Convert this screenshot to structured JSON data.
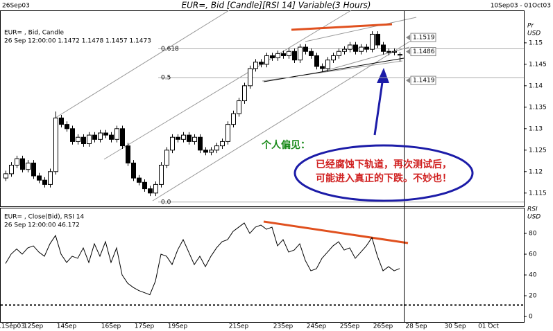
{
  "chart_data": [
    {
      "type": "candlestick",
      "title": "EUR=, Bid [Candle][RSI 14] Variable(3 Hours)",
      "date_left": "26Sep03",
      "date_range": "10Sep03 - 01Oct03",
      "info_lines": [
        "EUR= , Bid, Candle",
        "26 Sep 12:00:00 1.1472 1.1478 1.1457 1.1473"
      ],
      "y_axis_label": [
        "Pr",
        "USD"
      ],
      "up_color": "#ffffff",
      "down_color": "#000000",
      "open": [
        1.1185,
        1.1195,
        1.1215,
        1.123,
        1.1205,
        1.122,
        1.119,
        1.118,
        1.117,
        1.12,
        1.1325,
        1.131,
        1.13,
        1.127,
        1.128,
        1.1265,
        1.1285,
        1.1275,
        1.129,
        1.1285,
        1.1275,
        1.13,
        1.126,
        1.122,
        1.1185,
        1.1175,
        1.116,
        1.115,
        1.117,
        1.1215,
        1.125,
        1.128,
        1.1275,
        1.1285,
        1.127,
        1.128,
        1.125,
        1.1245,
        1.125,
        1.126,
        1.127,
        1.131,
        1.1335,
        1.1365,
        1.14,
        1.144,
        1.1455,
        1.145,
        1.147,
        1.1465,
        1.1475,
        1.147,
        1.148,
        1.146,
        1.149,
        1.148,
        1.147,
        1.1445,
        1.144,
        1.146,
        1.147,
        1.148,
        1.1485,
        1.1495,
        1.148,
        1.149,
        1.1485,
        1.152,
        1.1495,
        1.148,
        1.1478,
        1.1472
      ],
      "high": [
        1.1202,
        1.1222,
        1.1237,
        1.1237,
        1.1227,
        1.1227,
        1.1197,
        1.1187,
        1.1207,
        1.134,
        1.1332,
        1.1317,
        1.1307,
        1.1287,
        1.1287,
        1.1292,
        1.1292,
        1.1297,
        1.1297,
        1.1292,
        1.1307,
        1.1307,
        1.1267,
        1.1227,
        1.1192,
        1.1182,
        1.1167,
        1.1177,
        1.1222,
        1.1257,
        1.1287,
        1.1287,
        1.1292,
        1.1292,
        1.1287,
        1.1287,
        1.1257,
        1.1257,
        1.1267,
        1.1277,
        1.1317,
        1.1342,
        1.1372,
        1.1407,
        1.1447,
        1.1462,
        1.1462,
        1.1477,
        1.1477,
        1.1482,
        1.1482,
        1.1487,
        1.1487,
        1.1497,
        1.1497,
        1.1487,
        1.1477,
        1.1452,
        1.1467,
        1.1477,
        1.1487,
        1.1492,
        1.1502,
        1.1502,
        1.1497,
        1.1497,
        1.1527,
        1.1527,
        1.1502,
        1.1487,
        1.1487,
        1.1478
      ],
      "low": [
        1.1178,
        1.1188,
        1.1208,
        1.1198,
        1.1198,
        1.1183,
        1.1173,
        1.1163,
        1.1163,
        1.1193,
        1.1303,
        1.1293,
        1.1263,
        1.1263,
        1.1258,
        1.1258,
        1.1268,
        1.1268,
        1.1278,
        1.1268,
        1.1268,
        1.1253,
        1.1213,
        1.1178,
        1.1168,
        1.1153,
        1.1143,
        1.1143,
        1.1163,
        1.1208,
        1.1243,
        1.1268,
        1.1268,
        1.1263,
        1.1263,
        1.1243,
        1.1238,
        1.1238,
        1.1243,
        1.1253,
        1.1263,
        1.1303,
        1.1328,
        1.1358,
        1.1393,
        1.1433,
        1.1443,
        1.1443,
        1.1458,
        1.1458,
        1.1463,
        1.1463,
        1.1453,
        1.1453,
        1.1473,
        1.1463,
        1.1438,
        1.1433,
        1.1433,
        1.1453,
        1.1463,
        1.1473,
        1.1478,
        1.1473,
        1.1473,
        1.1478,
        1.1478,
        1.1488,
        1.1473,
        1.1471,
        1.1471,
        1.1457
      ],
      "close": [
        1.1195,
        1.1215,
        1.123,
        1.1205,
        1.122,
        1.119,
        1.118,
        1.117,
        1.12,
        1.1325,
        1.131,
        1.13,
        1.127,
        1.128,
        1.1265,
        1.1285,
        1.1275,
        1.129,
        1.1285,
        1.1275,
        1.13,
        1.126,
        1.122,
        1.1185,
        1.1175,
        1.116,
        1.115,
        1.117,
        1.1215,
        1.125,
        1.128,
        1.1275,
        1.1285,
        1.127,
        1.128,
        1.125,
        1.1245,
        1.125,
        1.126,
        1.127,
        1.131,
        1.1335,
        1.1365,
        1.14,
        1.144,
        1.1455,
        1.145,
        1.147,
        1.1465,
        1.1475,
        1.147,
        1.148,
        1.146,
        1.149,
        1.148,
        1.147,
        1.1445,
        1.144,
        1.146,
        1.147,
        1.148,
        1.1485,
        1.1495,
        1.148,
        1.149,
        1.1485,
        1.152,
        1.1495,
        1.148,
        1.1478,
        1.148,
        1.1473
      ],
      "ylim": [
        1.1119,
        1.1574
      ],
      "yticks": [
        1.115,
        1.12,
        1.125,
        1.13,
        1.135,
        1.14,
        1.145,
        1.15
      ],
      "fib_levels": [
        {
          "name": "0.618",
          "price": 1.1486
        },
        {
          "name": "0.5",
          "price": 1.1419
        },
        {
          "name": "0.0",
          "price": 1.1129
        }
      ],
      "price_markers": [
        1.1519,
        1.1486,
        1.1419
      ],
      "annotations": [
        "个人偏见：",
        "已经腐蚀下轨道，再次测试后，",
        "可能进入真正的下跌。不妙也！"
      ]
    },
    {
      "type": "line",
      "info_lines": [
        "EUR= , Close(Bid), RSI 14",
        "26 Sep 12:00:00 46.172"
      ],
      "y_axis_label": [
        "RSI",
        "USD"
      ],
      "color": "#000000",
      "categories": [
        null,
        "11Sep03",
        null,
        null,
        null,
        "12Sep",
        null,
        null,
        null,
        null,
        null,
        "14Sep",
        null,
        null,
        null,
        null,
        null,
        null,
        null,
        "16Sep",
        null,
        null,
        null,
        null,
        null,
        "17Sep",
        null,
        null,
        null,
        null,
        null,
        "19Sep",
        null,
        null,
        null,
        null,
        null,
        null,
        null,
        null,
        null,
        null,
        "21Sep",
        null,
        null,
        null,
        null,
        null,
        null,
        null,
        "23Sep",
        null,
        null,
        null,
        null,
        null,
        "24Sep",
        null,
        null,
        null,
        null,
        null,
        "25Sep",
        null,
        null,
        null,
        null,
        null,
        "26Sep",
        null,
        null,
        null,
        null,
        null,
        "28 Sep",
        null,
        null,
        null,
        null,
        null,
        null,
        "30 Sep",
        null,
        null,
        null,
        null,
        null,
        "01 Oct",
        null,
        null,
        null,
        null,
        null
      ],
      "values": [
        51,
        60,
        65,
        60,
        66,
        68,
        62,
        58,
        70,
        78,
        60,
        52,
        58,
        56,
        66,
        52,
        70,
        58,
        72,
        52,
        66,
        40,
        32,
        28,
        25,
        23,
        21,
        34,
        60,
        58,
        50,
        64,
        74,
        62,
        50,
        58,
        48,
        58,
        66,
        72,
        74,
        82,
        86,
        90,
        80,
        86,
        88,
        84,
        86,
        68,
        74,
        62,
        64,
        70,
        54,
        44,
        46,
        56,
        62,
        68,
        72,
        64,
        66,
        56,
        62,
        68,
        76,
        58,
        44,
        48,
        44,
        46.172,
        null,
        null,
        null,
        null,
        null,
        null,
        null,
        null,
        null,
        null,
        null,
        null,
        null,
        null,
        null,
        null,
        null,
        null,
        null,
        null,
        null
      ],
      "ylim": [
        -5.3,
        104.7
      ],
      "yticks": [
        0,
        20,
        40,
        60,
        80
      ],
      "ref_level": 11
    }
  ]
}
